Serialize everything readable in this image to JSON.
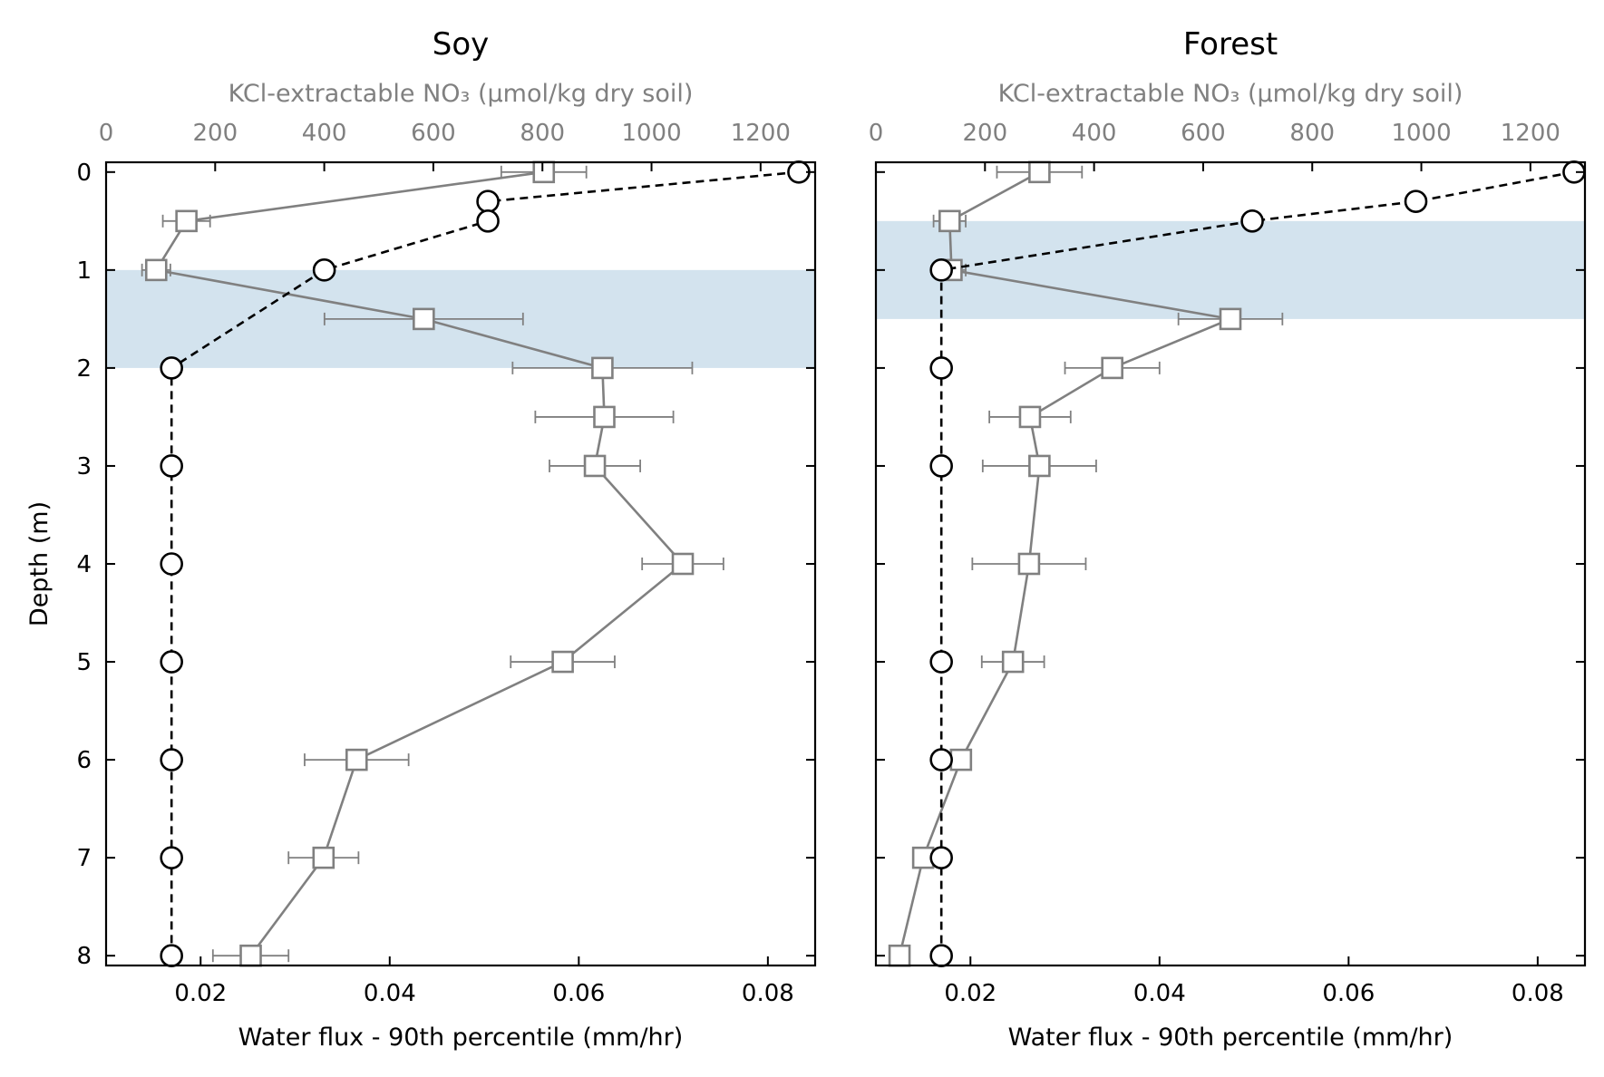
{
  "chart_data": [
    {
      "type": "line",
      "title": "Soy",
      "xlabel": "Water flux - 90th percentile (mm/hr)",
      "ylabel": "Depth (m)",
      "top_xlabel": "KCl-extractable NO₃ (µmol/kg dry soil)",
      "xlim": [
        0.01,
        0.085
      ],
      "x_ticks": [
        "0.02",
        "0.04",
        "0.06",
        "0.08"
      ],
      "top_xlim": [
        0,
        1300
      ],
      "top_x_ticks": [
        "0",
        "200",
        "400",
        "600",
        "800",
        "1000",
        "1200"
      ],
      "ylim": [
        8.1,
        -0.1
      ],
      "y_ticks": [
        "0",
        "1",
        "2",
        "3",
        "4",
        "5",
        "6",
        "7",
        "8"
      ],
      "y_inverted": true,
      "shaded_depth_band": [
        1.0,
        2.0
      ],
      "grid": false,
      "series": [
        {
          "axis": "bottom",
          "style": "solid gray line, open square markers, horizontal error bars",
          "x": [
            0.0563,
            0.0185,
            0.0153,
            0.0436,
            0.0625,
            0.0627,
            0.0617,
            0.071,
            0.0583,
            0.0365,
            0.033,
            0.0253
          ],
          "y": [
            0,
            0.5,
            1,
            1.5,
            2,
            2.5,
            3,
            4,
            5,
            6,
            7,
            8
          ],
          "xerr": [
            0.0045,
            0.0025,
            0.0015,
            0.0105,
            0.0095,
            0.0073,
            0.0048,
            0.0043,
            0.0055,
            0.0055,
            0.0037,
            0.004
          ]
        },
        {
          "axis": "top",
          "style": "dashed black line, open circle markers",
          "x": [
            1270,
            700,
            700,
            400,
            120,
            120,
            120,
            120,
            120,
            120,
            120
          ],
          "y": [
            0,
            0.3,
            0.5,
            1,
            2,
            3,
            4,
            5,
            6,
            7,
            8
          ]
        }
      ]
    },
    {
      "type": "line",
      "title": "Forest",
      "xlabel": "Water flux - 90th percentile (mm/hr)",
      "ylabel": "",
      "top_xlabel": "KCl-extractable NO₃ (µmol/kg dry soil)",
      "xlim": [
        0.01,
        0.085
      ],
      "x_ticks": [
        "0.02",
        "0.04",
        "0.06",
        "0.08"
      ],
      "top_xlim": [
        0,
        1300
      ],
      "top_x_ticks": [
        "0",
        "200",
        "400",
        "600",
        "800",
        "1000",
        "1200"
      ],
      "ylim": [
        8.1,
        -0.1
      ],
      "y_ticks": [
        "0",
        "1",
        "2",
        "3",
        "4",
        "5",
        "6",
        "7",
        "8"
      ],
      "y_inverted": true,
      "shaded_depth_band": [
        0.5,
        1.5
      ],
      "grid": false,
      "series": [
        {
          "axis": "bottom",
          "style": "solid gray line, open square markers, horizontal error bars",
          "x": [
            0.0273,
            0.0178,
            0.018,
            0.0475,
            0.035,
            0.0263,
            0.0273,
            0.0262,
            0.0245,
            0.019,
            0.015,
            0.0125
          ],
          "y": [
            0,
            0.5,
            1,
            1.5,
            2,
            2.5,
            3,
            4,
            5,
            6,
            7,
            8
          ],
          "xerr": [
            0.0045,
            0.0017,
            0.0015,
            0.0055,
            0.005,
            0.0043,
            0.006,
            0.006,
            0.0033,
            0.0008,
            0.0005,
            0.0005
          ]
        },
        {
          "axis": "top",
          "style": "dashed black line, open circle markers",
          "x": [
            1280,
            990,
            690,
            120,
            120,
            120,
            120,
            120,
            120,
            120
          ],
          "y": [
            0,
            0.3,
            0.5,
            1,
            2,
            3,
            5,
            6,
            7,
            8
          ]
        }
      ]
    }
  ],
  "colors": {
    "band": "#d3e3ee",
    "flux_series": "#808080",
    "nitrate_series": "#000000",
    "top_axis_text": "#808080",
    "axis": "#000000"
  }
}
